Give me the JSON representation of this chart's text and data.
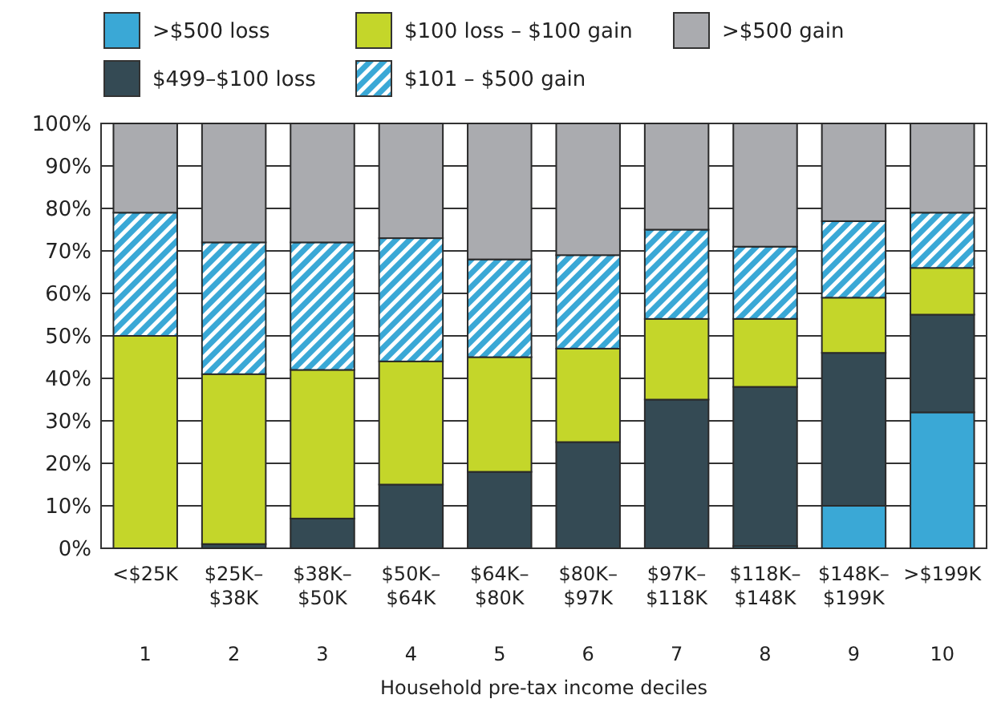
{
  "chart_data": {
    "type": "bar",
    "stacked": true,
    "xlabel": "Household pre-tax income deciles",
    "categories": [
      "<$25K",
      "$25K–\n$38K",
      "$38K–\n$50K",
      "$50K–\n$64K",
      "$64K–\n$80K",
      "$80K–\n$97K",
      "$97K–\n$118K",
      "$118K–\n$148K",
      "$148K–\n$199K",
      ">$199K"
    ],
    "series": [
      {
        "name": ">$500 loss",
        "color": "#3aa8d6",
        "values": [
          0,
          0,
          0,
          0,
          0,
          0,
          0,
          0.5,
          10,
          32
        ]
      },
      {
        "name": "$499–$100 loss",
        "color": "#344a54",
        "values": [
          0,
          1,
          7,
          15,
          18,
          25,
          35,
          37.5,
          36,
          23
        ]
      },
      {
        "name": "$100 loss – $100 gain",
        "color": "#c4d62a",
        "values": [
          50,
          40,
          35,
          29,
          27,
          22,
          19,
          16,
          13,
          11
        ]
      },
      {
        "name": "$101 – $500 gain",
        "color": "#3aa8d6",
        "values": [
          29,
          31,
          30,
          29,
          23,
          22,
          21,
          17,
          18,
          13
        ]
      },
      {
        "name": ">$500 gain",
        "color": "#aaabaf",
        "values": [
          21,
          28,
          28,
          27,
          32,
          31,
          25,
          29,
          23,
          21
        ]
      }
    ],
    "annotations": [
      "1",
      "2",
      "3",
      "4",
      "5",
      "6",
      "7",
      "8",
      "9",
      "10"
    ],
    "ylim": [
      0,
      100
    ],
    "yticks": [
      {
        "value": 0,
        "label": "0%"
      },
      {
        "value": 10,
        "label": "10%"
      },
      {
        "value": 20,
        "label": "20%"
      },
      {
        "value": 30,
        "label": "30%"
      },
      {
        "value": 40,
        "label": "40%"
      },
      {
        "value": 50,
        "label": "50%"
      },
      {
        "value": 60,
        "label": "60%"
      },
      {
        "value": 70,
        "label": "70%"
      },
      {
        "value": 80,
        "label": "80%"
      },
      {
        "value": 90,
        "label": "90%"
      },
      {
        "value": 100,
        "label": "100%"
      }
    ],
    "grid": "y",
    "legend": "top"
  }
}
